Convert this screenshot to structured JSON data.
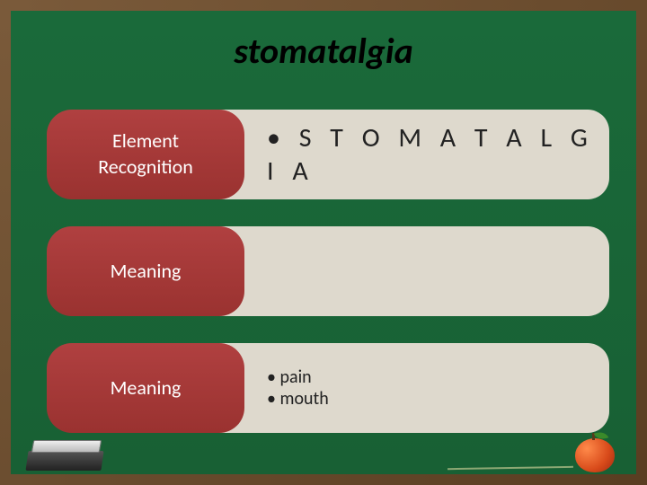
{
  "title": "stomatalgia",
  "rows": [
    {
      "label_lines": [
        "Element",
        "Recognition"
      ],
      "content_big": "• S T O M A T A L G I A",
      "content_lines": []
    },
    {
      "label_lines": [
        "Meaning"
      ],
      "content_big": "",
      "content_lines": []
    },
    {
      "label_lines": [
        "Meaning"
      ],
      "content_big": "",
      "content_lines": [
        "• pain",
        "• mouth"
      ]
    }
  ],
  "colors": {
    "board": "#1a6a3a",
    "frame": "#6b4a2f",
    "label_bg": "#a83a38",
    "content_bg": "#ded9cd",
    "title_color": "#000000",
    "label_text": "#ffffff",
    "content_text": "#222222"
  },
  "fonts": {
    "title_size": 40,
    "title_style": "italic",
    "label_size": 22,
    "content_size": 22,
    "content_big_size": 30,
    "content_big_letterspacing": 7
  }
}
